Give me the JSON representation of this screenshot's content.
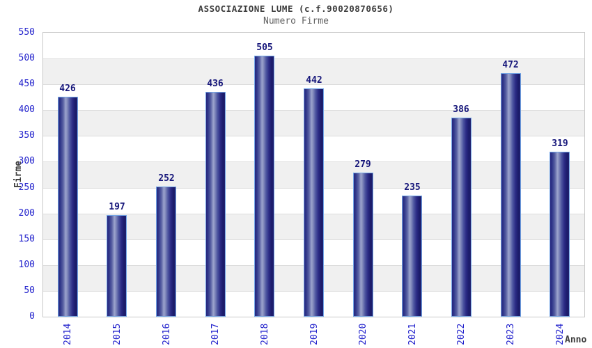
{
  "title": "ASSOCIAZIONE LUME (c.f.90020870656)",
  "subtitle": "Numero Firme",
  "axes": {
    "x_title": "Anno",
    "y_title": "Firme"
  },
  "colors": {
    "tick_label_blue": "#2121cc",
    "value_label_navy": "#16167a",
    "bar_edge_dark": "#20206e",
    "bar_mid_dark": "#2b2b85",
    "bar_highlight": "#9ba3cd",
    "bar_border_lightblue": "#74a7e8",
    "band_gray": "#f0f0f0",
    "band_white": "#ffffff",
    "gridline": "#dcdcdc",
    "plot_border": "#c8c8c8",
    "title_color": "#3c3c3c",
    "subtitle_color": "#616161"
  },
  "chart_data": {
    "type": "bar",
    "title": "ASSOCIAZIONE LUME (c.f.90020870656)",
    "subtitle": "Numero Firme",
    "xlabel": "Anno",
    "ylabel": "Firme",
    "categories": [
      "2014",
      "2015",
      "2016",
      "2017",
      "2018",
      "2019",
      "2020",
      "2021",
      "2022",
      "2023",
      "2024"
    ],
    "values": [
      426,
      197,
      252,
      436,
      505,
      442,
      279,
      235,
      386,
      472,
      319
    ],
    "yticks": [
      0,
      50,
      100,
      150,
      200,
      250,
      300,
      350,
      400,
      450,
      500,
      550
    ],
    "ylim": [
      0,
      550
    ],
    "grid": "horizontal alternating bands, white/gray, step 50",
    "legend": "none",
    "bar_label_position": "above bar, centered",
    "x_tick_rotation": -90
  }
}
